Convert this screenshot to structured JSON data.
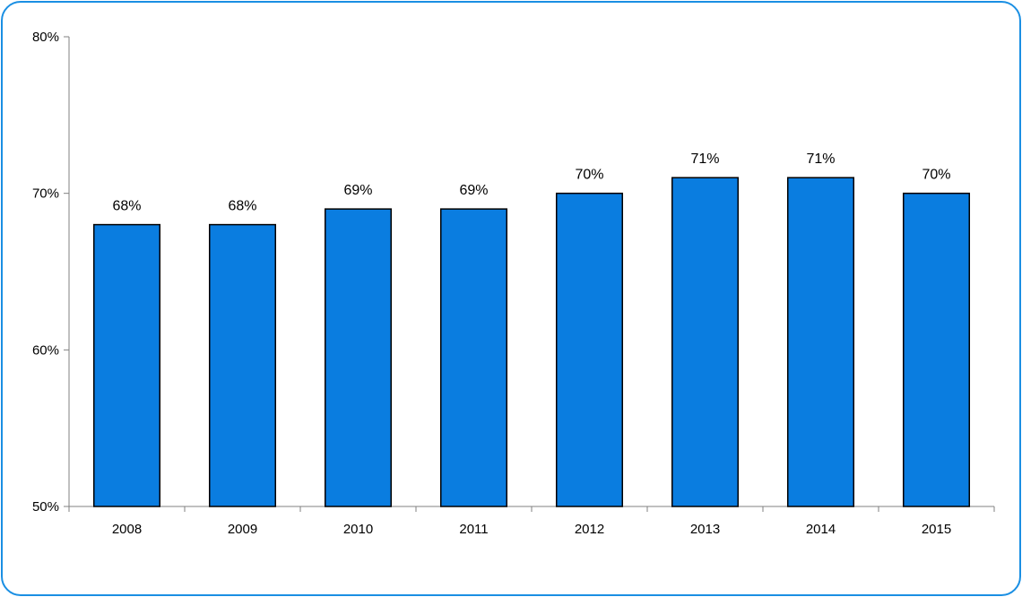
{
  "colors": {
    "frame": "#1a8fe3",
    "bar_fill": "#0a7de0",
    "bar_stroke": "#000000",
    "axis": "#808080"
  },
  "chart_data": {
    "type": "bar",
    "categories": [
      "2008",
      "2009",
      "2010",
      "2011",
      "2012",
      "2013",
      "2014",
      "2015"
    ],
    "values": [
      68,
      68,
      69,
      69,
      70,
      71,
      71,
      70
    ],
    "data_labels": [
      "68%",
      "68%",
      "69%",
      "69%",
      "70%",
      "71%",
      "71%",
      "70%"
    ],
    "title": "",
    "xlabel": "",
    "ylabel": "",
    "ylim": [
      50,
      80
    ],
    "y_ticks": [
      50,
      60,
      70,
      80
    ],
    "y_tick_labels": [
      "50%",
      "60%",
      "70%",
      "80%"
    ],
    "grid": false,
    "legend": "none"
  }
}
